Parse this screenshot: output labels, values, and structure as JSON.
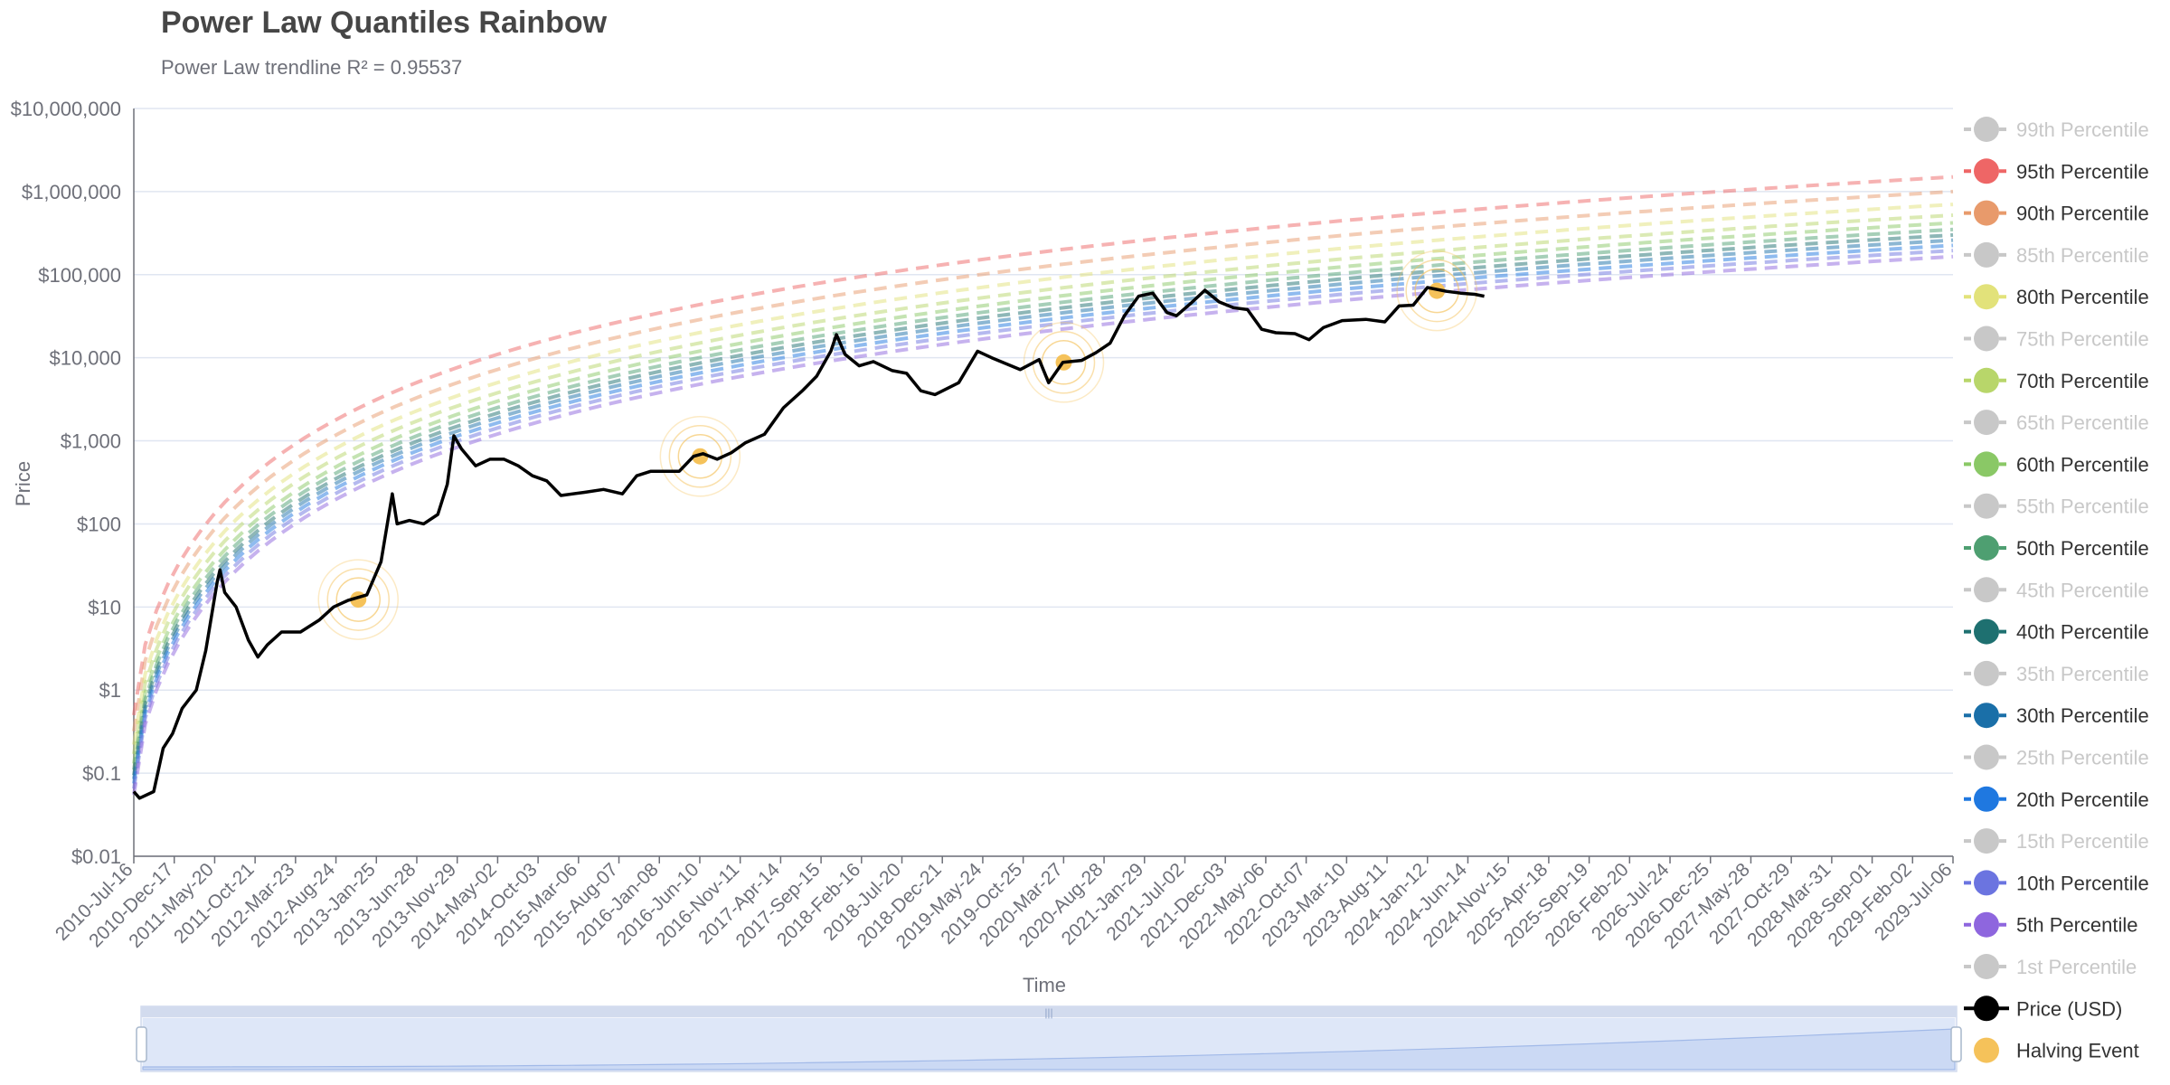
{
  "chart_data": {
    "type": "line",
    "title": "Power Law Quantiles Rainbow",
    "subtitle": "Power Law trendline R² = 0.95537",
    "xlabel": "Time",
    "ylabel": "Price",
    "yscale": "log",
    "ylim": [
      0.01,
      10000000
    ],
    "y_ticks": [
      "$10,000,000",
      "$1,000,000",
      "$100,000",
      "$10,000",
      "$1,000",
      "$100",
      "$10",
      "$1",
      "$0.1",
      "$0.01"
    ],
    "x_ticks": [
      "2010-Jul-16",
      "2010-Dec-17",
      "2011-May-20",
      "2011-Oct-21",
      "2012-Mar-23",
      "2012-Aug-24",
      "2013-Jan-25",
      "2013-Jun-28",
      "2013-Nov-29",
      "2014-May-02",
      "2014-Oct-03",
      "2015-Mar-06",
      "2015-Aug-07",
      "2016-Jan-08",
      "2016-Jun-10",
      "2016-Nov-11",
      "2017-Apr-14",
      "2017-Sep-15",
      "2018-Feb-16",
      "2018-Jul-20",
      "2018-Dec-21",
      "2019-May-24",
      "2019-Oct-25",
      "2020-Mar-27",
      "2020-Aug-28",
      "2021-Jan-29",
      "2021-Jul-02",
      "2021-Dec-03",
      "2022-May-06",
      "2022-Oct-07",
      "2023-Mar-10",
      "2023-Aug-11",
      "2024-Jan-12",
      "2024-Jun-14",
      "2024-Nov-15",
      "2025-Apr-18",
      "2025-Sep-19",
      "2026-Feb-20",
      "2026-Jul-24",
      "2026-Dec-25",
      "2027-May-28",
      "2027-Oct-29",
      "2028-Mar-31",
      "2028-Sep-01",
      "2029-Feb-02",
      "2029-Jul-06"
    ],
    "x_range_years": [
      2010.54,
      2029.75
    ],
    "percentiles": [
      {
        "name": "99th Percentile",
        "color": "#c8c8c8",
        "visible": false,
        "start": 0,
        "end": 0
      },
      {
        "name": "95th Percentile",
        "color": "#ee6666",
        "visible": true,
        "start": 0.5,
        "end": 1500000
      },
      {
        "name": "90th Percentile",
        "color": "#e89a6b",
        "visible": true,
        "start": 0.32,
        "end": 1000000
      },
      {
        "name": "85th Percentile",
        "color": "#c8c8c8",
        "visible": false,
        "start": 0,
        "end": 0
      },
      {
        "name": "80th Percentile",
        "color": "#e2e27a",
        "visible": true,
        "start": 0.22,
        "end": 700000
      },
      {
        "name": "75th Percentile",
        "color": "#c8c8c8",
        "visible": false,
        "start": 0,
        "end": 0
      },
      {
        "name": "70th Percentile",
        "color": "#b8d66a",
        "visible": true,
        "start": 0.17,
        "end": 520000
      },
      {
        "name": "65th Percentile",
        "color": "#c8c8c8",
        "visible": false,
        "start": 0,
        "end": 0
      },
      {
        "name": "60th Percentile",
        "color": "#8ac866",
        "visible": true,
        "start": 0.13,
        "end": 420000
      },
      {
        "name": "55th Percentile",
        "color": "#c8c8c8",
        "visible": false,
        "start": 0,
        "end": 0
      },
      {
        "name": "50th Percentile",
        "color": "#4e9f71",
        "visible": true,
        "start": 0.11,
        "end": 350000
      },
      {
        "name": "45th Percentile",
        "color": "#c8c8c8",
        "visible": false,
        "start": 0,
        "end": 0
      },
      {
        "name": "40th Percentile",
        "color": "#1e7070",
        "visible": true,
        "start": 0.095,
        "end": 300000
      },
      {
        "name": "35th Percentile",
        "color": "#c8c8c8",
        "visible": false,
        "start": 0,
        "end": 0
      },
      {
        "name": "30th Percentile",
        "color": "#1a6fa8",
        "visible": true,
        "start": 0.085,
        "end": 260000
      },
      {
        "name": "25th Percentile",
        "color": "#c8c8c8",
        "visible": false,
        "start": 0,
        "end": 0
      },
      {
        "name": "20th Percentile",
        "color": "#1f78e0",
        "visible": true,
        "start": 0.075,
        "end": 225000
      },
      {
        "name": "15th Percentile",
        "color": "#c8c8c8",
        "visible": false,
        "start": 0,
        "end": 0
      },
      {
        "name": "10th Percentile",
        "color": "#6b74e0",
        "visible": true,
        "start": 0.065,
        "end": 195000
      },
      {
        "name": "5th Percentile",
        "color": "#8e66de",
        "visible": true,
        "start": 0.055,
        "end": 165000
      },
      {
        "name": "1st Percentile",
        "color": "#c8c8c8",
        "visible": false,
        "start": 0,
        "end": 0
      }
    ],
    "price_series": {
      "name": "Price (USD)",
      "color": "#000000",
      "points": [
        [
          2010.54,
          0.06
        ],
        [
          2010.6,
          0.05
        ],
        [
          2010.75,
          0.06
        ],
        [
          2010.85,
          0.2
        ],
        [
          2010.95,
          0.3
        ],
        [
          2011.05,
          0.6
        ],
        [
          2011.2,
          1.0
        ],
        [
          2011.3,
          3
        ],
        [
          2011.42,
          20
        ],
        [
          2011.45,
          28
        ],
        [
          2011.5,
          15
        ],
        [
          2011.62,
          10
        ],
        [
          2011.75,
          4
        ],
        [
          2011.85,
          2.5
        ],
        [
          2011.95,
          3.5
        ],
        [
          2012.1,
          5
        ],
        [
          2012.3,
          5
        ],
        [
          2012.5,
          7
        ],
        [
          2012.65,
          10
        ],
        [
          2012.8,
          12
        ],
        [
          2013.0,
          14
        ],
        [
          2013.15,
          35
        ],
        [
          2013.27,
          230
        ],
        [
          2013.32,
          100
        ],
        [
          2013.45,
          110
        ],
        [
          2013.6,
          100
        ],
        [
          2013.75,
          130
        ],
        [
          2013.85,
          300
        ],
        [
          2013.92,
          1150
        ],
        [
          2014.0,
          800
        ],
        [
          2014.15,
          500
        ],
        [
          2014.3,
          600
        ],
        [
          2014.45,
          600
        ],
        [
          2014.6,
          500
        ],
        [
          2014.75,
          380
        ],
        [
          2014.9,
          330
        ],
        [
          2015.05,
          220
        ],
        [
          2015.3,
          240
        ],
        [
          2015.5,
          260
        ],
        [
          2015.7,
          230
        ],
        [
          2015.85,
          380
        ],
        [
          2016.0,
          430
        ],
        [
          2016.3,
          430
        ],
        [
          2016.45,
          650
        ],
        [
          2016.55,
          700
        ],
        [
          2016.7,
          600
        ],
        [
          2016.85,
          720
        ],
        [
          2017.0,
          950
        ],
        [
          2017.2,
          1200
        ],
        [
          2017.4,
          2500
        ],
        [
          2017.6,
          4000
        ],
        [
          2017.75,
          6000
        ],
        [
          2017.9,
          12000
        ],
        [
          2017.96,
          19000
        ],
        [
          2018.05,
          11000
        ],
        [
          2018.2,
          8000
        ],
        [
          2018.35,
          9000
        ],
        [
          2018.55,
          7000
        ],
        [
          2018.7,
          6500
        ],
        [
          2018.85,
          4000
        ],
        [
          2019.0,
          3600
        ],
        [
          2019.25,
          5000
        ],
        [
          2019.45,
          12000
        ],
        [
          2019.6,
          10000
        ],
        [
          2019.75,
          8500
        ],
        [
          2019.9,
          7200
        ],
        [
          2020.1,
          9500
        ],
        [
          2020.2,
          5000
        ],
        [
          2020.35,
          8800
        ],
        [
          2020.55,
          9300
        ],
        [
          2020.7,
          11500
        ],
        [
          2020.85,
          15000
        ],
        [
          2021.0,
          32000
        ],
        [
          2021.15,
          55000
        ],
        [
          2021.3,
          60000
        ],
        [
          2021.45,
          35000
        ],
        [
          2021.55,
          32000
        ],
        [
          2021.7,
          45000
        ],
        [
          2021.85,
          65000
        ],
        [
          2022.0,
          47000
        ],
        [
          2022.15,
          40000
        ],
        [
          2022.3,
          38000
        ],
        [
          2022.45,
          22000
        ],
        [
          2022.6,
          20000
        ],
        [
          2022.8,
          19500
        ],
        [
          2022.95,
          16500
        ],
        [
          2023.1,
          23000
        ],
        [
          2023.3,
          28000
        ],
        [
          2023.55,
          29000
        ],
        [
          2023.75,
          27000
        ],
        [
          2023.9,
          42000
        ],
        [
          2024.05,
          43000
        ],
        [
          2024.2,
          70000
        ],
        [
          2024.4,
          63000
        ],
        [
          2024.55,
          60000
        ],
        [
          2024.7,
          58000
        ],
        [
          2024.8,
          55000
        ]
      ]
    },
    "halving_events": [
      {
        "name": "Halving Event",
        "date": "2012-Nov-28",
        "x": 2012.91,
        "price": 12.3
      },
      {
        "name": "Halving Event",
        "date": "2016-Jul-09",
        "x": 2016.52,
        "price": 650
      },
      {
        "name": "Halving Event",
        "date": "2020-May-11",
        "x": 2020.36,
        "price": 8800
      },
      {
        "name": "Halving Event",
        "date": "2024-Apr-19",
        "x": 2024.3,
        "price": 64000
      }
    ],
    "legend": {
      "price_label": "Price (USD)",
      "halving_label": "Halving Event",
      "halving_color": "#f5c25a",
      "placement": "right"
    },
    "grid": true
  },
  "slider": {
    "label": "zoom-range-slider",
    "range_start_pct": 0,
    "range_end_pct": 100
  }
}
